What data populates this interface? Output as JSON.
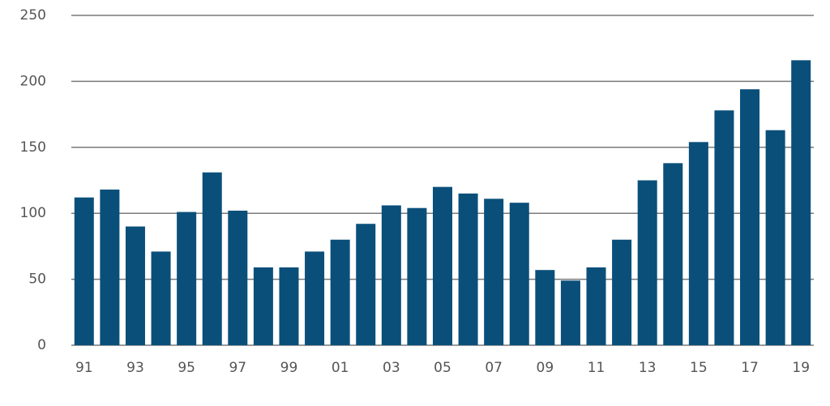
{
  "chart_data": {
    "type": "bar",
    "categories": [
      "91",
      null,
      "93",
      null,
      "95",
      null,
      "97",
      null,
      "99",
      null,
      "01",
      null,
      "03",
      null,
      "05",
      null,
      "07",
      null,
      "09",
      null,
      "11",
      null,
      "13",
      null,
      "15",
      null,
      "17",
      null,
      "19"
    ],
    "values": [
      112,
      118,
      90,
      71,
      101,
      131,
      102,
      59,
      59,
      71,
      80,
      92,
      106,
      104,
      120,
      115,
      111,
      108,
      57,
      49,
      59,
      80,
      125,
      138,
      154,
      178,
      194,
      163,
      216
    ],
    "color": "#0a4f7a",
    "ylim": [
      0,
      250
    ],
    "yticks": [
      0,
      50,
      100,
      150,
      200,
      250
    ],
    "grid": true
  }
}
